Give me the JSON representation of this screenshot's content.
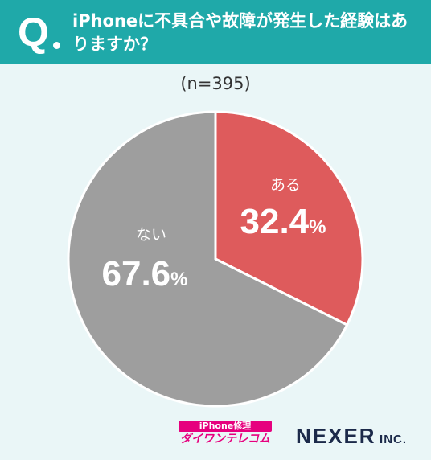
{
  "header": {
    "q_mark": "Q",
    "question": "iPhoneに不具合や故障が発生した経験はありますか？"
  },
  "sample_size": "(n=395)",
  "chart_data": {
    "type": "pie",
    "title": "iPhoneに不具合や故障が発生した経験はありますか？",
    "slices": [
      {
        "label": "ある",
        "value": 32.4,
        "display": "32.4",
        "color": "#de5b5c"
      },
      {
        "label": "ない",
        "value": 67.6,
        "display": "67.6",
        "color": "#9e9e9e"
      }
    ],
    "unit": "%",
    "start": "top-clockwise"
  },
  "logos": {
    "left_top": "iPhone修理",
    "left_bottom": "ダイワンテレコム",
    "right_main": "NEXER",
    "right_suffix": "INC."
  }
}
